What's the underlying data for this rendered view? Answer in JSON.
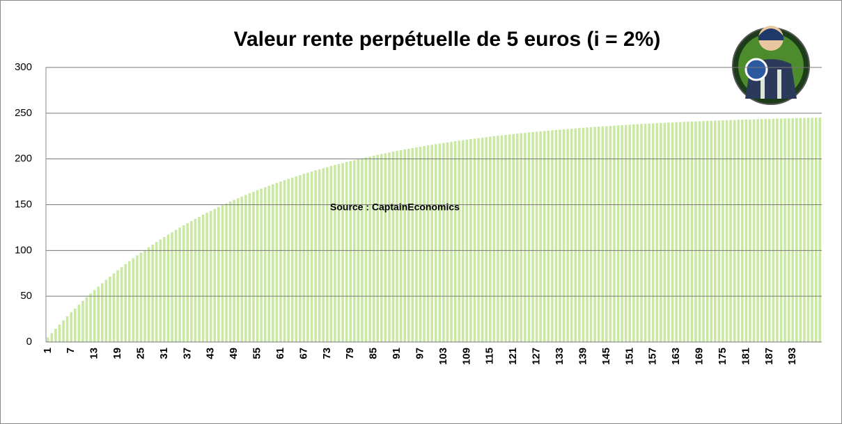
{
  "chart_data": {
    "type": "bar",
    "title": "Valeur rente perpétuelle de 5 euros (i = 2%)",
    "annotation": "Source : CaptainEconomics",
    "color": "#c9e8a2",
    "ylim": [
      0,
      300
    ],
    "yticks": [
      0,
      50,
      100,
      150,
      200,
      250,
      300
    ],
    "grid": true,
    "categories": [
      "1",
      null,
      null,
      null,
      null,
      null,
      "7",
      null,
      null,
      null,
      null,
      null,
      "13",
      null,
      null,
      null,
      null,
      null,
      "19",
      null,
      null,
      null,
      null,
      null,
      "25",
      null,
      null,
      null,
      null,
      null,
      "31",
      null,
      null,
      null,
      null,
      null,
      "37",
      null,
      null,
      null,
      null,
      null,
      "43",
      null,
      null,
      null,
      null,
      null,
      "49",
      null,
      null,
      null,
      null,
      null,
      "55",
      null,
      null,
      null,
      null,
      null,
      "61",
      null,
      null,
      null,
      null,
      null,
      "67",
      null,
      null,
      null,
      null,
      null,
      "73",
      null,
      null,
      null,
      null,
      null,
      "79",
      null,
      null,
      null,
      null,
      null,
      "85",
      null,
      null,
      null,
      null,
      null,
      "91",
      null,
      null,
      null,
      null,
      null,
      "97",
      null,
      null,
      null,
      null,
      null,
      "103",
      null,
      null,
      null,
      null,
      null,
      "109",
      null,
      null,
      null,
      null,
      null,
      "115",
      null,
      null,
      null,
      null,
      null,
      "121",
      null,
      null,
      null,
      null,
      null,
      "127",
      null,
      null,
      null,
      null,
      null,
      "133",
      null,
      null,
      null,
      null,
      null,
      "139",
      null,
      null,
      null,
      null,
      null,
      "145",
      null,
      null,
      null,
      null,
      null,
      "151",
      null,
      null,
      null,
      null,
      null,
      "157",
      null,
      null,
      null,
      null,
      null,
      "163",
      null,
      null,
      null,
      null,
      null,
      "169",
      null,
      null,
      null,
      null,
      null,
      "175",
      null,
      null,
      null,
      null,
      null,
      "181",
      null,
      null,
      null,
      null,
      null,
      "187",
      null,
      null,
      null,
      null,
      null,
      "193",
      null,
      null,
      null,
      null,
      null,
      null,
      null
    ],
    "values": [
      4.9,
      9.7,
      14.4,
      19.0,
      23.6,
      28.0,
      32.4,
      36.6,
      40.8,
      44.9,
      48.9,
      52.9,
      56.7,
      60.5,
      64.2,
      67.9,
      71.5,
      75.0,
      78.4,
      81.8,
      85.1,
      88.3,
      91.5,
      94.6,
      97.6,
      100.6,
      103.5,
      106.4,
      109.2,
      112.0,
      114.7,
      117.3,
      119.9,
      122.5,
      125.0,
      127.4,
      129.8,
      132.2,
      134.5,
      136.8,
      139.0,
      141.2,
      143.3,
      145.4,
      147.5,
      149.5,
      151.4,
      153.4,
      155.3,
      157.1,
      158.9,
      160.7,
      162.5,
      164.2,
      165.9,
      167.5,
      169.1,
      170.7,
      172.3,
      173.8,
      175.3,
      176.8,
      178.2,
      179.6,
      181.0,
      182.3,
      183.7,
      185.0,
      186.2,
      187.5,
      188.7,
      189.9,
      191.1,
      192.3,
      193.4,
      194.5,
      195.6,
      196.7,
      197.7,
      198.7,
      199.7,
      200.7,
      201.7,
      202.6,
      203.6,
      204.5,
      205.4,
      206.2,
      207.1,
      207.9,
      208.8,
      209.6,
      210.4,
      211.1,
      211.9,
      212.6,
      213.4,
      214.1,
      214.8,
      215.5,
      216.2,
      216.8,
      217.5,
      218.1,
      218.7,
      219.4,
      220.0,
      220.5,
      221.1,
      221.7,
      222.2,
      222.8,
      223.3,
      223.8,
      224.4,
      224.9,
      225.4,
      225.8,
      226.3,
      226.8,
      227.2,
      227.7,
      228.1,
      228.5,
      229.0,
      229.4,
      229.8,
      230.2,
      230.6,
      230.9,
      231.3,
      231.7,
      232.0,
      232.4,
      232.7,
      233.1,
      233.4,
      233.7,
      234.1,
      234.4,
      234.7,
      235.0,
      235.3,
      235.6,
      235.8,
      236.1,
      236.4,
      236.7,
      236.9,
      237.2,
      237.4,
      237.7,
      237.9,
      238.2,
      238.4,
      238.6,
      238.8,
      239.1,
      239.3,
      239.5,
      239.7,
      239.9,
      240.1,
      240.3,
      240.5,
      240.7,
      240.8,
      241.0,
      241.2,
      241.4,
      241.5,
      241.7,
      241.9,
      242.0,
      242.2,
      242.3,
      242.5,
      242.6,
      242.8,
      242.9,
      243.1,
      243.2,
      243.3,
      243.5,
      243.6,
      243.7,
      243.8,
      244.0,
      244.1,
      244.2,
      244.3,
      244.4,
      244.5,
      244.6,
      244.7,
      244.8,
      244.9,
      245.0,
      245.1,
      245.2
    ]
  }
}
